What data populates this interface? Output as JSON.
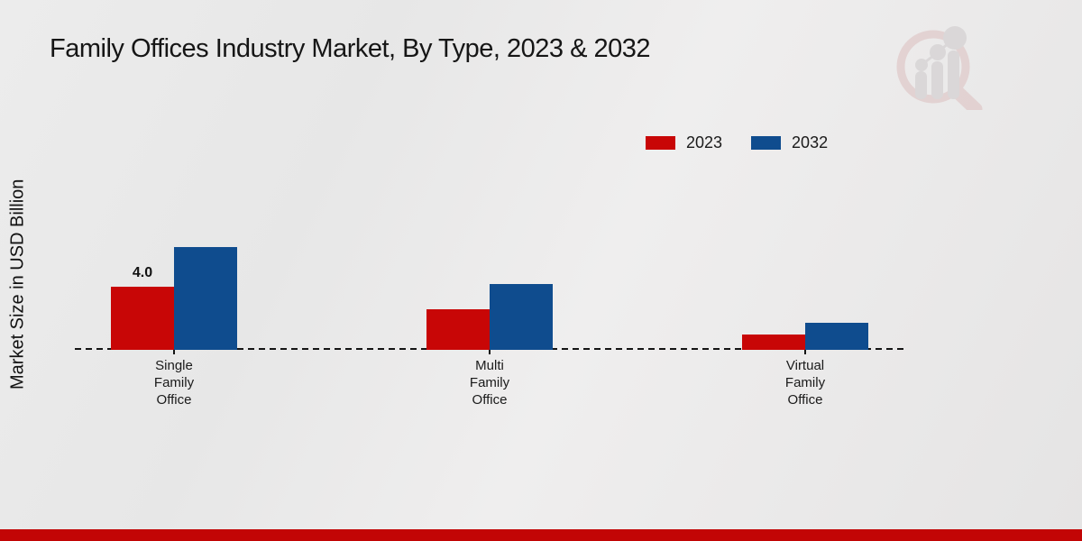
{
  "page": {
    "title": "Family Offices Industry Market, By Type, 2023 & 2032"
  },
  "chart_data": {
    "type": "bar",
    "title": "Family Offices Industry Market, By Type, 2023 & 2032",
    "ylabel": "Market Size in USD Billion",
    "xlabel": "",
    "categories": [
      "Single\nFamily\nOffice",
      "Multi\nFamily\nOffice",
      "Virtual\nFamily\nOffice"
    ],
    "series": [
      {
        "name": "2023",
        "color": "#c80606",
        "values": [
          4.0,
          2.6,
          1.0
        ],
        "value_labels": [
          "4.0",
          "",
          ""
        ]
      },
      {
        "name": "2032",
        "color": "#0f4c8e",
        "values": [
          6.5,
          4.2,
          1.7
        ],
        "value_labels": [
          "",
          "",
          ""
        ]
      }
    ],
    "ylim": [
      0,
      7
    ],
    "grid": false,
    "legend_position": "top-right",
    "baseline_style": "dashed"
  },
  "colors": {
    "accent_red": "#c80606",
    "accent_blue": "#0f4c8e",
    "bottom_bar": "#c20505",
    "background": "#e9e9e9"
  }
}
